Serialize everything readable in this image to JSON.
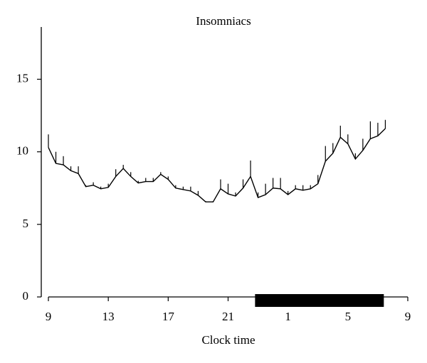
{
  "chart_data": {
    "type": "line",
    "title": "Insomniacs",
    "x_label": "Clock time",
    "x": [
      9,
      9.5,
      10,
      10.5,
      11,
      11.5,
      12,
      12.5,
      13,
      13.5,
      14,
      14.5,
      15,
      15.5,
      16,
      16.5,
      17,
      17.5,
      18,
      18.5,
      19,
      19.5,
      20,
      20.5,
      21,
      21.5,
      22,
      22.5,
      23,
      23.5,
      24,
      24.5,
      25,
      25.5,
      26,
      26.5,
      27,
      27.5,
      28,
      28.5,
      29,
      29.5,
      30,
      30.5,
      31,
      31.5
    ],
    "series": [
      {
        "color": "#000000",
        "values": [
          10.3,
          9.2,
          9.1,
          8.7,
          8.5,
          7.6,
          7.7,
          7.45,
          7.55,
          8.3,
          8.85,
          8.3,
          7.85,
          7.95,
          7.95,
          8.45,
          8.1,
          7.5,
          7.4,
          7.3,
          7.0,
          6.55,
          6.55,
          7.45,
          7.1,
          6.95,
          7.5,
          8.3,
          6.85,
          7.05,
          7.5,
          7.45,
          7.05,
          7.45,
          7.35,
          7.45,
          7.8,
          9.35,
          9.9,
          11.0,
          10.55,
          9.5,
          10.1,
          10.9,
          11.1,
          11.6
        ],
        "errors": [
          0.9,
          0.8,
          0.6,
          0.3,
          0.5,
          0.1,
          0.2,
          0.15,
          0.25,
          0.5,
          0.25,
          0.3,
          0.15,
          0.25,
          0.25,
          0.15,
          0.2,
          0.2,
          0.2,
          0.3,
          0.3,
          0.05,
          0.05,
          0.65,
          0.7,
          0.25,
          0.6,
          1.1,
          0.35,
          0.75,
          0.7,
          0.75,
          0.25,
          0.25,
          0.35,
          0.25,
          0.6,
          1.05,
          0.7,
          0.8,
          0.65,
          0.4,
          0.8,
          1.2,
          0.9,
          0.6
        ]
      }
    ],
    "sleep_period": [
      22.8,
      31.4
    ],
    "xlim": [
      9,
      33
    ],
    "xticks": [
      9,
      13,
      17,
      21,
      {
        "value": 25,
        "label": "1"
      },
      {
        "value": 29,
        "label": "5"
      },
      {
        "value": 33,
        "label": "9"
      }
    ],
    "ylim": [
      0,
      18.6
    ],
    "yticks": [
      0,
      5,
      10,
      15
    ]
  }
}
